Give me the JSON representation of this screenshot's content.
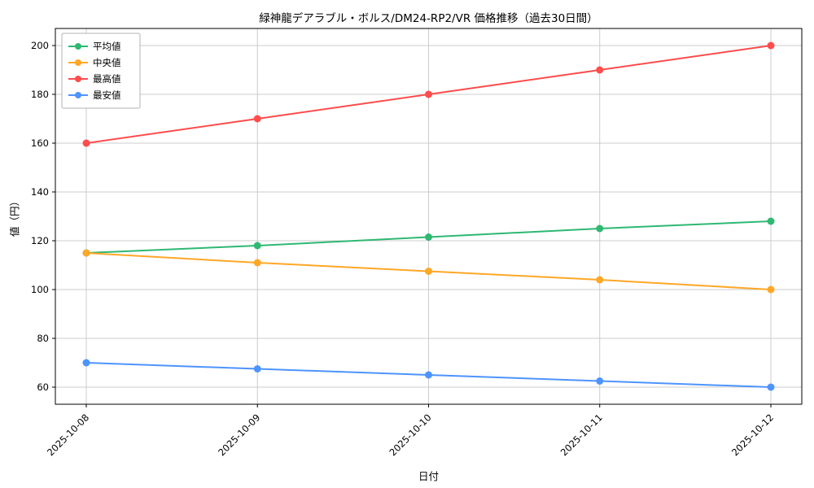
{
  "chart_data": {
    "type": "line",
    "title": "緑神龍デアラブル・ボルス/DM24-RP2/VR 価格推移（過去30日間）",
    "xlabel": "日付",
    "ylabel": "値（円）",
    "categories": [
      "2025-10-08",
      "2025-10-09",
      "2025-10-10",
      "2025-10-11",
      "2025-10-12"
    ],
    "series": [
      {
        "key": "average",
        "name": "平均値",
        "color": "#2eb872",
        "values": [
          115,
          118,
          121.5,
          125,
          128
        ]
      },
      {
        "key": "median",
        "name": "中央値",
        "color": "#ffa726",
        "values": [
          115,
          111,
          107.5,
          104,
          100
        ]
      },
      {
        "key": "high",
        "name": "最高値",
        "color": "#ff4c4c",
        "values": [
          160,
          170,
          180,
          190,
          200
        ]
      },
      {
        "key": "low",
        "name": "最安値",
        "color": "#4d94ff",
        "values": [
          70,
          67.5,
          65,
          62.5,
          60
        ]
      }
    ],
    "yticks": [
      60,
      80,
      100,
      120,
      140,
      160,
      180,
      200
    ],
    "ylim": [
      53,
      207
    ],
    "grid": true,
    "legend_position": "upper-left",
    "colors": {
      "grid": "#cccccc",
      "spine": "#000000",
      "text": "#000000",
      "legend_border": "#b3b3b3",
      "background": "#ffffff"
    }
  }
}
